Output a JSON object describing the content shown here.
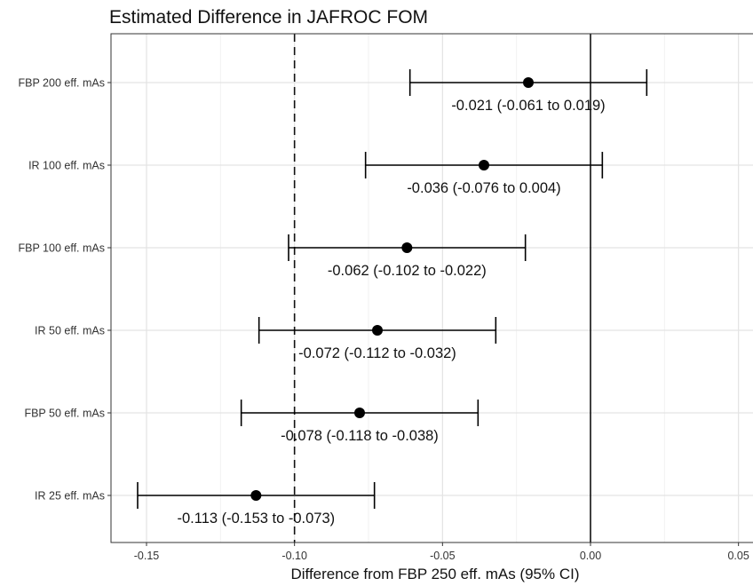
{
  "chart_data": {
    "type": "forest",
    "title": "Estimated Difference in JAFROC FOM",
    "xlabel": "Difference from  FBP 250 eff. mAs (95% CI)",
    "ylabel": "",
    "xlim": [
      -0.162,
      0.057
    ],
    "x_ticks": [
      -0.15,
      -0.1,
      -0.05,
      0.0,
      0.05
    ],
    "x_tick_labels": [
      "-0.15",
      "-0.10",
      "-0.05",
      "0.00",
      "0.05"
    ],
    "grid": true,
    "reference_lines": [
      {
        "x": 0.0,
        "style": "solid"
      },
      {
        "x": -0.1,
        "style": "dashed"
      }
    ],
    "rows": [
      {
        "category": "FBP 200 eff. mAs",
        "estimate": -0.021,
        "lower": -0.061,
        "upper": 0.019,
        "label": "-0.021 (-0.061 to 0.019)"
      },
      {
        "category": "IR 100 eff. mAs",
        "estimate": -0.036,
        "lower": -0.076,
        "upper": 0.004,
        "label": "-0.036 (-0.076 to 0.004)"
      },
      {
        "category": "FBP 100 eff. mAs",
        "estimate": -0.062,
        "lower": -0.102,
        "upper": -0.022,
        "label": "-0.062 (-0.102 to -0.022)"
      },
      {
        "category": "IR 50 eff. mAs",
        "estimate": -0.072,
        "lower": -0.112,
        "upper": -0.032,
        "label": "-0.072 (-0.112 to -0.032)"
      },
      {
        "category": "FBP 50 eff. mAs",
        "estimate": -0.078,
        "lower": -0.118,
        "upper": -0.038,
        "label": "-0.078 (-0.118 to -0.038)"
      },
      {
        "category": "IR 25 eff. mAs",
        "estimate": -0.113,
        "lower": -0.153,
        "upper": -0.073,
        "label": "-0.113 (-0.153 to -0.073)"
      }
    ]
  }
}
